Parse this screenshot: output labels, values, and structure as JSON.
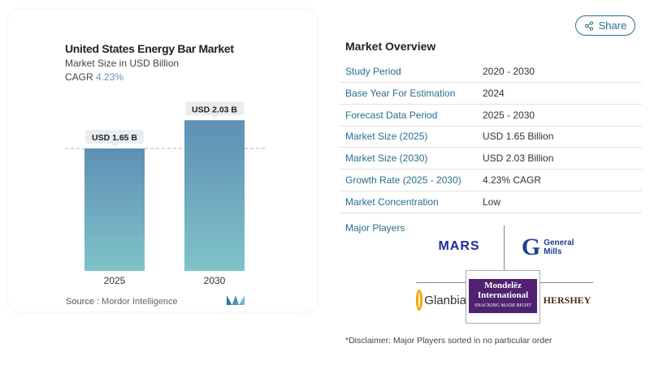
{
  "chart_data": {
    "type": "bar",
    "title": "United States Energy Bar Market",
    "subtitle": "Market Size in USD Billion",
    "cagr_label": "CAGR",
    "cagr_value": "4.23%",
    "categories": [
      "2025",
      "2030"
    ],
    "values": [
      1.65,
      2.03
    ],
    "data_labels": [
      "USD 1.65 B",
      "USD 2.03 B"
    ],
    "grid": false,
    "source_label": "Source :",
    "source": "Mordor Intelligence"
  },
  "share_label": "Share",
  "overview": {
    "title": "Market Overview",
    "rows": [
      {
        "label": "Study Period",
        "value": "2020 - 2030"
      },
      {
        "label": "Base Year For Estimation",
        "value": "2024"
      },
      {
        "label": "Forecast Data Period",
        "value": "2025 - 2030"
      },
      {
        "label": "Market Size (2025)",
        "value": "USD 1.65 Billion"
      },
      {
        "label": "Market Size (2030)",
        "value": "USD 2.03 Billion"
      },
      {
        "label": "Growth Rate (2025 - 2030)",
        "value": "4.23% CAGR"
      },
      {
        "label": "Market Concentration",
        "value": "Low"
      }
    ],
    "major_players_label": "Major Players",
    "players": [
      "MARS",
      "General Mills",
      "Glanbia",
      "Mondelēz International",
      "HERSHEY"
    ],
    "mondelez_tagline": "SNACKING MADE RIGHT",
    "disclaimer": "*Disclaimer: Major Players sorted in no particular order"
  },
  "colors": {
    "bar_top": "#5f8fb5",
    "bar_bottom": "#7fc3c9",
    "accent": "#2a6f8f"
  }
}
